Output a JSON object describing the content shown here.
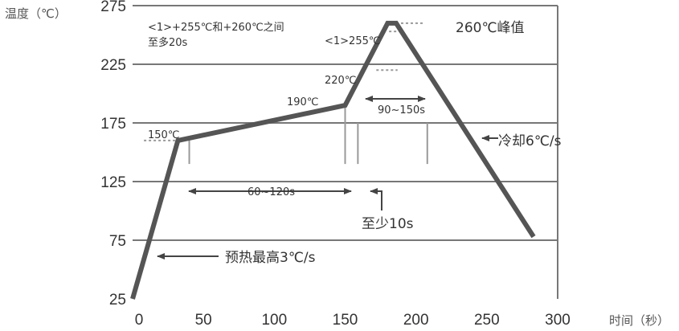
{
  "chart_data": {
    "type": "line",
    "title": "",
    "ylabel": "温度（℃）",
    "xlabel": "时间（秒）",
    "xlim": [
      0,
      300
    ],
    "ylim": [
      25,
      275
    ],
    "x_ticks": [
      0,
      50,
      100,
      150,
      200,
      250,
      300
    ],
    "y_ticks": [
      25,
      75,
      125,
      175,
      225,
      275
    ],
    "grid": "horizontal",
    "series": [
      {
        "x": [
          0,
          32,
          150,
          180,
          186,
          283
        ],
        "y": [
          25,
          160,
          190,
          260,
          260,
          78
        ]
      }
    ],
    "annotations": {
      "peak_note_line1": "<1>+255℃和+260℃之间",
      "peak_note_line2": "至多20s",
      "label_255": "<1>255℃",
      "label_260": "260℃峰值",
      "label_220": "220℃",
      "label_190": "190℃",
      "label_150": "150℃",
      "label_90_150": "90~150s",
      "label_60_120": "60~120s",
      "label_min10": "至少10s",
      "label_cool": "冷却6℃/s",
      "label_preheat": "预热最高3℃/s"
    }
  }
}
